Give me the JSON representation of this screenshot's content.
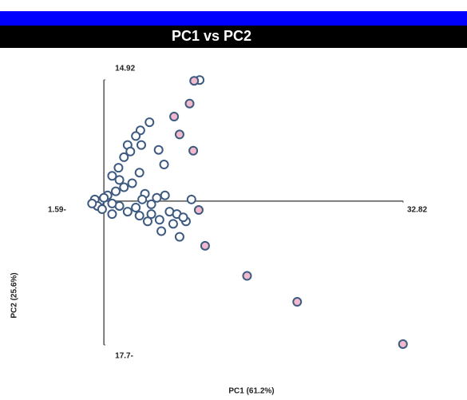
{
  "chart_data": {
    "type": "scatter",
    "title": "PC1 vs PC2",
    "x_label": "PC1 (61.2%)",
    "y_label": "PC2 (25.6%)",
    "xlim": [
      -1.59,
      32.82
    ],
    "ylim": [
      -17.7,
      14.92
    ],
    "xticks": [
      {
        "value": -1.59,
        "label": "1.59-"
      },
      32.82
    ],
    "yticks": [
      14.92,
      {
        "value": -17.7,
        "label": "17.7-"
      }
    ],
    "series": [
      {
        "color": "#ffffff",
        "x": [
          10.5,
          5.0,
          4.0,
          3.5,
          4.1,
          2.6,
          2.9,
          6.0,
          2.2,
          6.6,
          1.6,
          3.9,
          0.9,
          1.7,
          8.3,
          6.3,
          7.6,
          9.0,
          6.1,
          4.8,
          5.2,
          7.2,
          8.0,
          6.7,
          5.8,
          4.5,
          3.5,
          2.6,
          1.7,
          3.9,
          0.9,
          -0.4,
          -1.0,
          -0.7,
          0.4,
          1.3,
          2.2,
          3.1,
          0,
          -1.3,
          -0.2,
          0.9,
          5.2,
          8.7,
          9.6,
          4.2
        ],
        "values": [
          14.9,
          9.7,
          8.7,
          8.0,
          6.9,
          6.9,
          6.1,
          6.3,
          5.4,
          4.5,
          4.1,
          3.5,
          3.1,
          2.6,
          -4.4,
          -3.7,
          -2.8,
          -2.5,
          -2.3,
          -2.5,
          -1.6,
          -1.3,
          -1.6,
          0.7,
          0.4,
          0.9,
          -0.8,
          -1.3,
          -0.6,
          -1.8,
          -0.3,
          0,
          0.2,
          -0.6,
          0.7,
          1.2,
          1.7,
          2.2,
          0.4,
          -0.3,
          -1.0,
          -1.6,
          -0.4,
          -2.0,
          0.2,
          0.2
        ]
      },
      {
        "color": "#f2b8cc",
        "x": [
          9.9,
          9.4,
          7.7,
          8.3,
          9.8,
          10.4,
          11.1,
          15.7,
          21.2,
          32.8
        ],
        "values": [
          14.8,
          12.0,
          10.4,
          8.2,
          6.2,
          -1.1,
          -5.5,
          -9.2,
          -12.4,
          -17.6
        ]
      }
    ]
  }
}
